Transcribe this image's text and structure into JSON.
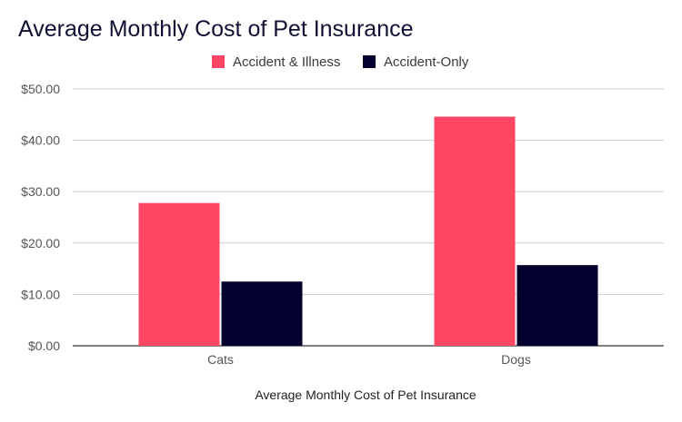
{
  "chart_data": {
    "type": "bar",
    "title": "Average Monthly Cost of Pet Insurance",
    "xlabel": "Average Monthly Cost of Pet Insurance",
    "ylabel": "",
    "categories": [
      "Cats",
      "Dogs"
    ],
    "series": [
      {
        "name": "Accident & Illness",
        "values": [
          27.8,
          44.6
        ],
        "color": "#ff4763"
      },
      {
        "name": "Accident-Only",
        "values": [
          12.5,
          15.7
        ],
        "color": "#03002e"
      }
    ],
    "ylim": [
      0,
      50
    ],
    "yticks": [
      "$0.00",
      "$10.00",
      "$20.00",
      "$30.00",
      "$40.00",
      "$50.00"
    ],
    "grid": true,
    "legend_position": "top"
  }
}
